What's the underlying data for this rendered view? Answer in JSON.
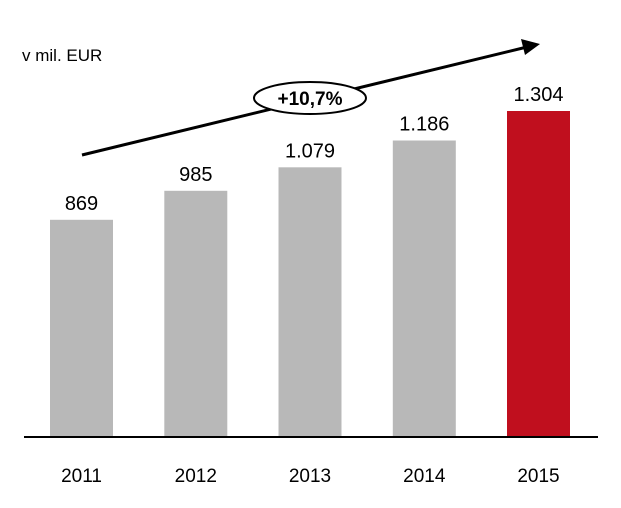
{
  "chart_data": {
    "type": "bar",
    "unit_label": "v mil. EUR",
    "categories": [
      "2011",
      "2012",
      "2013",
      "2014",
      "2015"
    ],
    "values": [
      869,
      985,
      1079,
      1186,
      1304
    ],
    "value_labels": [
      "869",
      "985",
      "1.079",
      "1.186",
      "1.304"
    ],
    "growth_annotation": "+10,7%",
    "ylim": [
      0,
      1304
    ],
    "grid": false,
    "legend": "none",
    "colors": {
      "bar_default": "#b8b8b8",
      "bar_highlight": "#c00f1e",
      "axis": "#000000"
    }
  }
}
